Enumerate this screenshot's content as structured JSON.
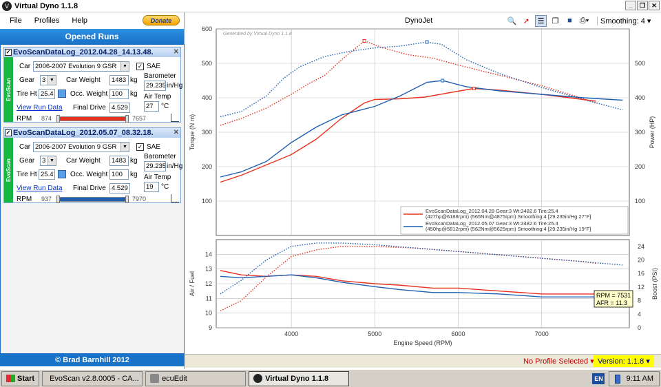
{
  "window": {
    "title": "Virtual Dyno 1.1.8",
    "controls": [
      "_",
      "❐",
      "✕"
    ]
  },
  "menu": {
    "items": [
      "File",
      "Profiles",
      "Help"
    ],
    "donate_label": "Donate"
  },
  "left_panel": {
    "opened_runs_title": "Opened Runs",
    "footer": "© Brad Barnhill 2012",
    "runs": [
      {
        "name": "EvoScanDataLog_2012.04.28_14.13.48.",
        "strip": "EvoScan",
        "car_label": "Car",
        "car": "2006-2007 Evolution 9 GSR",
        "sae_label": "SAE",
        "sae_checked": true,
        "gear_label": "Gear",
        "gear": "3",
        "car_weight_label": "Car Weight",
        "car_weight": "1483",
        "car_weight_unit": "kg",
        "barometer_label": "Barometer",
        "barometer": "29.235",
        "barometer_unit": "in/Hg",
        "tire_label": "Tire Ht",
        "tire": "25.4",
        "occ_weight_label": "Occ. Weight",
        "occ_weight": "100",
        "occ_weight_unit": "kg",
        "air_temp_label": "Air Temp",
        "air_temp": "27",
        "air_temp_unit": "°C",
        "view_link": "View Run Data",
        "final_drive_label": "Final Drive",
        "final_drive": "4.529",
        "rpm_label": "RPM",
        "rpm_min": "874",
        "rpm_max": "7657",
        "color": "#e8321e"
      },
      {
        "name": "EvoScanDataLog_2012.05.07_08.32.18.",
        "strip": "EvoScan",
        "car_label": "Car",
        "car": "2006-2007 Evolution 9 GSR",
        "sae_label": "SAE",
        "sae_checked": true,
        "gear_label": "Gear",
        "gear": "3",
        "car_weight_label": "Car Weight",
        "car_weight": "1483",
        "car_weight_unit": "kg",
        "barometer_label": "Barometer",
        "barometer": "29.235",
        "barometer_unit": "in/Hg",
        "tire_label": "Tire Ht",
        "tire": "25.4",
        "occ_weight_label": "Occ. Weight",
        "occ_weight": "100",
        "occ_weight_unit": "kg",
        "air_temp_label": "Air Temp",
        "air_temp": "19",
        "air_temp_unit": "°C",
        "view_link": "View Run Data",
        "final_drive_label": "Final Drive",
        "final_drive": "4.529",
        "rpm_label": "RPM",
        "rpm_min": "937",
        "rpm_max": "7970",
        "color": "#1f5fb0"
      }
    ]
  },
  "toolbar": {
    "title": "DynoJet",
    "smoothing_label": "Smoothing: 4"
  },
  "status": {
    "profile": "No Profile Selected",
    "version": "Version: 1.1.8"
  },
  "taskbar": {
    "start": "Start",
    "tasks": [
      "EvoScan v2.8.0005 - CA...",
      "ecuEdit",
      "Virtual Dyno 1.1.8"
    ],
    "lang": "EN",
    "time": "9:11 AM"
  },
  "chart_data": [
    {
      "type": "line",
      "watermark": "Generated by Virtual Dyno 1.1.8",
      "xlabel": "",
      "ylabel": "Torque (N m)",
      "y2label": "Power (HP)",
      "xlim": [
        3100,
        8050
      ],
      "ylim": [
        0,
        600
      ],
      "yticks": [
        100,
        200,
        300,
        400,
        500,
        600
      ],
      "y2ticks": [
        100,
        200,
        300,
        400,
        500
      ],
      "legend": [
        {
          "name": "EvoScanDataLog_2012.04.28 Gear:3 Wt:3482.6 Tire:25.4",
          "detail": "(427hp@6188rpm) (565Nm@4875rpm) Smoothing:4 [29.235in/Hg 27°F]",
          "color": "#e8321e"
        },
        {
          "name": "EvoScanDataLog_2012.05.07 Gear:3 Wt:3482.6 Tire:25.4",
          "detail": "(450hp@5812rpm) (562Nm@5625rpm) Smoothing:4 [29.235in/Hg 19°F]",
          "color": "#1f5fb0"
        }
      ],
      "series": [
        {
          "name": "Torque 04.28",
          "color": "#e8321e",
          "dotted": true,
          "x": [
            3150,
            3400,
            3700,
            4000,
            4200,
            4400,
            4600,
            4875,
            5100,
            5400,
            5700,
            6000,
            6500,
            7000,
            7400,
            7650
          ],
          "y": [
            320,
            340,
            370,
            410,
            440,
            465,
            510,
            565,
            545,
            525,
            515,
            495,
            465,
            435,
            405,
            385
          ]
        },
        {
          "name": "Torque 05.07",
          "color": "#1f5fb0",
          "dotted": true,
          "x": [
            3150,
            3400,
            3700,
            3900,
            4100,
            4400,
            4700,
            5000,
            5300,
            5625,
            5800,
            6100,
            6500,
            7000,
            7500,
            7970
          ],
          "y": [
            345,
            360,
            405,
            455,
            490,
            520,
            535,
            545,
            550,
            562,
            555,
            510,
            470,
            430,
            395,
            365
          ]
        },
        {
          "name": "Power 04.28",
          "color": "#e8321e",
          "dotted": false,
          "x": [
            3150,
            3400,
            3700,
            4000,
            4300,
            4600,
            4875,
            5000,
            5300,
            5600,
            5900,
            6188,
            6500,
            7000,
            7400,
            7650
          ],
          "y": [
            155,
            175,
            205,
            235,
            280,
            340,
            385,
            395,
            397,
            402,
            415,
            427,
            422,
            410,
            398,
            390
          ]
        },
        {
          "name": "Power 05.07",
          "color": "#1f5fb0",
          "dotted": false,
          "x": [
            3150,
            3400,
            3700,
            4000,
            4300,
            4600,
            5000,
            5300,
            5625,
            5812,
            6100,
            6500,
            7000,
            7500,
            7970
          ],
          "y": [
            170,
            185,
            215,
            270,
            315,
            350,
            375,
            405,
            445,
            450,
            432,
            420,
            410,
            400,
            393
          ]
        }
      ]
    },
    {
      "type": "line",
      "xlabel": "Engine Speed (RPM)",
      "ylabel": "Air / Fuel",
      "y2label": "Boost (PSI)",
      "xlim": [
        3100,
        8050
      ],
      "ylim": [
        9,
        15
      ],
      "y2lim": [
        0,
        26
      ],
      "xticks": [
        4000,
        5000,
        6000,
        7000
      ],
      "yticks": [
        9,
        10,
        11,
        12,
        13,
        14
      ],
      "y2ticks": [
        0,
        4,
        8,
        12,
        16,
        20,
        24
      ],
      "cursor": {
        "rpm_label": "RPM = 7531",
        "afr_label": "AFR = 11.3"
      },
      "series": [
        {
          "name": "AFR 04.28",
          "color": "#e8321e",
          "dotted": false,
          "x": [
            3150,
            3400,
            3700,
            4000,
            4300,
            4600,
            5000,
            5300,
            5700,
            6000,
            6500,
            7000,
            7500,
            7650
          ],
          "y": [
            12.9,
            12.6,
            12.5,
            12.6,
            12.5,
            12.2,
            12.0,
            11.9,
            11.7,
            11.7,
            11.5,
            11.3,
            11.3,
            11.3
          ]
        },
        {
          "name": "AFR 05.07",
          "color": "#1f5fb0",
          "dotted": false,
          "x": [
            3150,
            3400,
            3700,
            4000,
            4300,
            4600,
            5000,
            5300,
            5700,
            6000,
            6500,
            7000,
            7500,
            7970
          ],
          "y": [
            12.5,
            12.4,
            12.5,
            12.6,
            12.4,
            12.1,
            11.8,
            11.6,
            11.4,
            11.4,
            11.3,
            11.1,
            11.1,
            11.1
          ]
        },
        {
          "name": "Boost 04.28",
          "color": "#e8321e",
          "dotted": true,
          "x": [
            3150,
            3400,
            3700,
            4000,
            4300,
            4600,
            5000,
            5500,
            6000,
            6500,
            7000,
            7500,
            7650
          ],
          "y": [
            5,
            8,
            15,
            21,
            23,
            24,
            24,
            23.5,
            22.5,
            21.5,
            20.5,
            19.5,
            19
          ]
        },
        {
          "name": "Boost 05.07",
          "color": "#1f5fb0",
          "dotted": true,
          "x": [
            3150,
            3400,
            3700,
            4000,
            4300,
            4600,
            5000,
            5500,
            6000,
            6500,
            7000,
            7500,
            7970
          ],
          "y": [
            10,
            14,
            20,
            24,
            25,
            25,
            24.5,
            23.5,
            22.5,
            21.5,
            20.5,
            19.5,
            18.5
          ]
        }
      ]
    }
  ]
}
